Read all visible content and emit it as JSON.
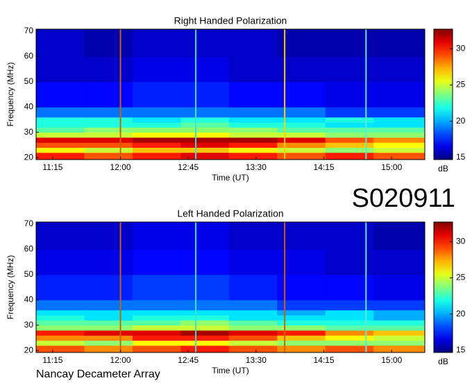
{
  "id_label": "S020911",
  "footer": "Nancay Decameter Array",
  "chart_data": [
    {
      "type": "heatmap",
      "title": "Right Handed Polarization",
      "xlabel": "Time (UT)",
      "ylabel": "Frequency (MHz)",
      "x": [
        664,
        696,
        728,
        760,
        792,
        824,
        856,
        888,
        922
      ],
      "y": [
        19.2,
        22,
        24,
        26,
        28,
        30,
        32,
        34,
        36,
        40,
        50,
        60,
        70.8
      ],
      "z": [
        [
          30,
          29,
          30,
          31,
          30,
          29,
          30,
          29
        ],
        [
          26,
          25,
          27,
          27,
          26,
          25,
          24,
          25
        ],
        [
          29,
          29,
          30,
          31,
          30,
          28,
          27,
          26
        ],
        [
          31,
          31,
          32,
          32,
          32,
          31,
          29,
          28
        ],
        [
          25,
          25,
          26,
          26,
          25,
          25,
          24,
          24
        ],
        [
          23,
          24,
          24,
          24,
          24,
          23,
          23,
          23
        ],
        [
          22,
          22,
          22,
          23,
          22,
          22,
          21,
          21
        ],
        [
          22,
          22,
          21,
          22,
          21,
          21,
          22,
          21
        ],
        [
          19,
          19,
          19,
          19,
          19,
          19,
          18,
          18
        ],
        [
          17,
          17,
          17.5,
          17.5,
          17,
          17,
          16.5,
          16.5
        ],
        [
          16,
          16,
          16.5,
          16.5,
          16,
          16,
          16,
          16
        ],
        [
          16,
          15.5,
          16,
          16,
          16,
          15.5,
          15.5,
          15.5
        ]
      ],
      "spikes": [
        {
          "x": 720,
          "color": "#c86400"
        },
        {
          "x": 770,
          "color": "#40e0d0"
        },
        {
          "x": 829,
          "color": "#ffd000"
        },
        {
          "x": 883,
          "color": "#60e8d0"
        }
      ],
      "xlim": [
        664,
        922
      ],
      "xticks": [
        {
          "value": 675,
          "label": "11:15"
        },
        {
          "value": 720,
          "label": "12:00"
        },
        {
          "value": 765,
          "label": "12:45"
        },
        {
          "value": 810,
          "label": "13:30"
        },
        {
          "value": 855,
          "label": "14:15"
        },
        {
          "value": 900,
          "label": "15:00"
        }
      ],
      "ylim": [
        19.2,
        70.8
      ],
      "yticks": [
        20,
        30,
        40,
        50,
        60,
        70
      ],
      "colorbar": {
        "lim": [
          14.7,
          32.7
        ],
        "ticks": [
          15,
          20,
          25,
          30
        ],
        "label": "dB"
      }
    },
    {
      "type": "heatmap",
      "title": "Left Handed Polarization",
      "xlabel": "Time (UT)",
      "ylabel": "Frequency (MHz)",
      "x": [
        664,
        696,
        728,
        760,
        792,
        824,
        856,
        888,
        922
      ],
      "y": [
        19.2,
        22,
        24,
        26,
        28,
        30,
        32,
        34,
        36,
        40,
        50,
        60,
        70.8
      ],
      "z": [
        [
          29,
          28,
          29,
          30,
          29,
          28,
          29,
          28
        ],
        [
          25,
          24,
          26,
          26,
          25,
          24,
          24,
          24
        ],
        [
          28,
          28,
          30,
          30,
          29,
          27,
          26,
          25
        ],
        [
          30,
          31,
          31,
          32,
          31,
          30,
          28,
          27
        ],
        [
          24,
          24,
          25,
          25,
          24,
          24,
          23,
          23
        ],
        [
          23,
          23,
          23,
          24,
          23,
          22,
          22,
          22
        ],
        [
          22,
          21,
          22,
          22,
          21,
          21,
          21,
          20
        ],
        [
          21,
          21,
          21,
          21,
          21,
          20,
          21,
          20
        ],
        [
          19,
          19,
          19,
          19,
          19,
          18,
          18,
          18
        ],
        [
          17.5,
          17.5,
          18,
          18,
          17.5,
          17,
          17,
          16.5
        ],
        [
          16.5,
          16.5,
          17,
          17,
          16.5,
          16.5,
          16,
          16
        ],
        [
          16,
          16,
          16.5,
          16.5,
          16,
          16,
          16,
          15.5
        ]
      ],
      "spikes": [
        {
          "x": 720,
          "color": "#c86400"
        },
        {
          "x": 770,
          "color": "#40e0d0"
        },
        {
          "x": 829,
          "color": "#d06000"
        },
        {
          "x": 883,
          "color": "#60e8d0"
        }
      ],
      "xlim": [
        664,
        922
      ],
      "xticks": [
        {
          "value": 675,
          "label": "11:15"
        },
        {
          "value": 720,
          "label": "12:00"
        },
        {
          "value": 765,
          "label": "12:45"
        },
        {
          "value": 810,
          "label": "13:30"
        },
        {
          "value": 855,
          "label": "14:15"
        },
        {
          "value": 900,
          "label": "15:00"
        }
      ],
      "ylim": [
        19.2,
        70.8
      ],
      "yticks": [
        20,
        30,
        40,
        50,
        60,
        70
      ],
      "colorbar": {
        "lim": [
          14.7,
          32.7
        ],
        "ticks": [
          15,
          20,
          25,
          30
        ],
        "label": "dB"
      }
    }
  ]
}
